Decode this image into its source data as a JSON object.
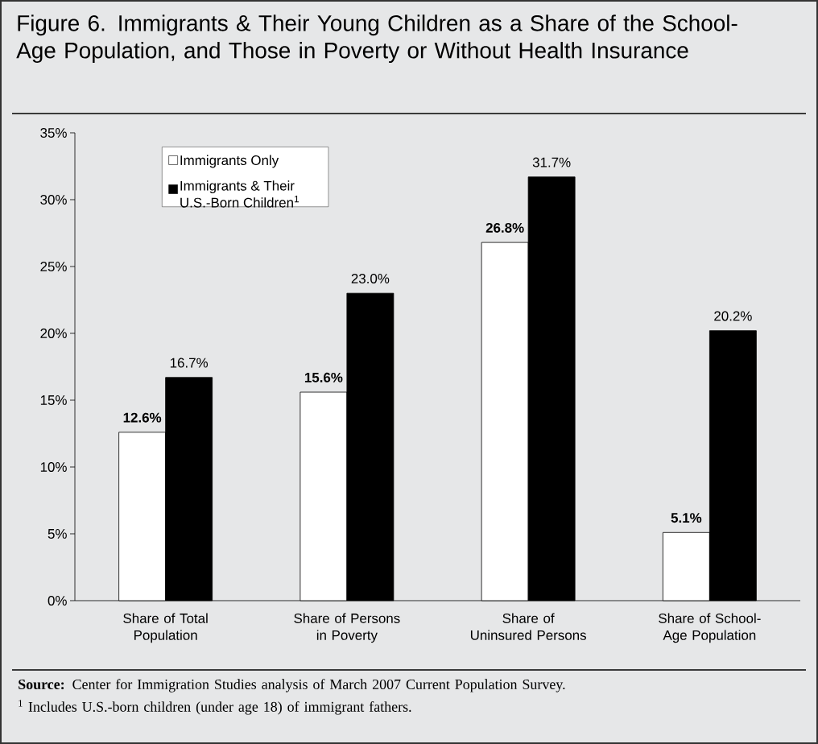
{
  "chart_data": {
    "type": "bar",
    "title": "Figure 6. Immigrants & Their Young Children as a Share of the School-Age Population, and Those in Poverty or Without Health Insurance",
    "categories": [
      "Share of Total Population",
      "Share of Persons in Poverty",
      "Share of Uninsured Persons",
      "Share of School-Age Population"
    ],
    "series": [
      {
        "name": "Immigrants Only",
        "color": "#ffffff",
        "values": [
          12.6,
          15.6,
          26.8,
          5.1
        ],
        "value_labels": [
          "12.6%",
          "15.6%",
          "26.8%",
          "5.1%"
        ]
      },
      {
        "name": "Immigrants & Their U.S.-Born Children$^{1}$",
        "color": "#000000",
        "values": [
          16.7,
          23.0,
          31.7,
          20.2
        ],
        "value_labels": [
          "16.7%",
          "23.0%",
          "31.7%",
          "20.2%"
        ]
      }
    ],
    "ylim": [
      0,
      35
    ],
    "yticks": [
      {
        "value": 0,
        "label": "0%"
      },
      {
        "value": 5,
        "label": "5%"
      },
      {
        "value": 10,
        "label": "10%"
      },
      {
        "value": 15,
        "label": "15%"
      },
      {
        "value": 20,
        "label": "20%"
      },
      {
        "value": 25,
        "label": "25%"
      },
      {
        "value": 30,
        "label": "30%"
      },
      {
        "value": 35,
        "label": "35%"
      }
    ],
    "legend": "top left",
    "grid": false,
    "annotations": [
      "**Source:** Center for Immigration Studies analysis of March 2007 Current Population Survey.",
      "$^{1}$ Includes U.S.-born children (under age 18) of immigrant fathers."
    ]
  }
}
